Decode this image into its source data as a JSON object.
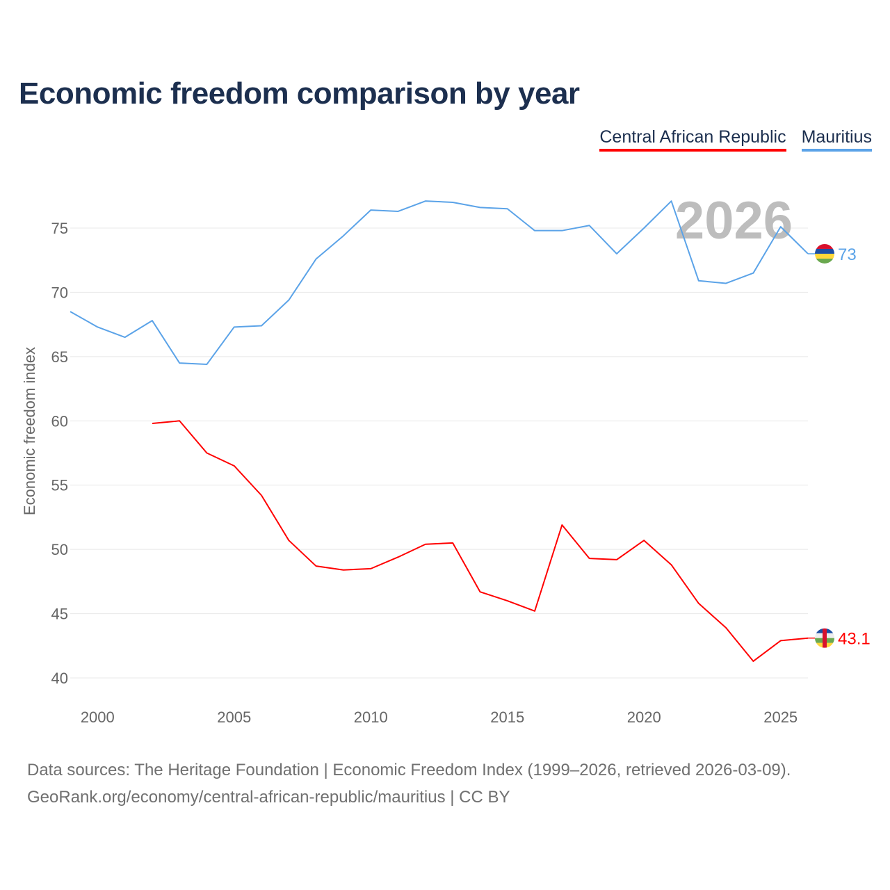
{
  "title": "Economic freedom comparison by year",
  "source_line1": "Data sources: The Heritage Foundation | Economic Freedom Index (1999–2026, retrieved 2026-03-09).",
  "source_line2": "GeoRank.org/economy/central-african-republic/mauritius | CC BY",
  "chart_data": {
    "type": "line",
    "title": "Economic freedom comparison by year",
    "xlabel": "",
    "ylabel": "Economic freedom index",
    "xlim": [
      1999,
      2026
    ],
    "ylim": [
      40,
      77.5
    ],
    "xticks": [
      2000,
      2005,
      2010,
      2015,
      2020,
      2025
    ],
    "yticks": [
      40,
      45,
      50,
      55,
      60,
      65,
      70,
      75
    ],
    "grid": true,
    "legend_position": "top-right",
    "year_watermark": "2026",
    "series": [
      {
        "name": "Central African Republic",
        "color": "#ff0000",
        "end_label": "43.1",
        "icon": "flag-central-african-republic-icon",
        "x": [
          2002,
          2003,
          2004,
          2005,
          2006,
          2007,
          2008,
          2009,
          2010,
          2011,
          2012,
          2013,
          2014,
          2015,
          2016,
          2017,
          2018,
          2019,
          2020,
          2021,
          2022,
          2023,
          2024,
          2025,
          2026
        ],
        "values": [
          59.8,
          60.0,
          57.5,
          56.5,
          54.2,
          50.7,
          48.7,
          48.4,
          48.5,
          49.4,
          50.4,
          50.5,
          46.7,
          46.0,
          45.2,
          51.9,
          49.3,
          49.2,
          50.7,
          48.8,
          45.8,
          43.9,
          41.3,
          42.9,
          43.1
        ]
      },
      {
        "name": "Mauritius",
        "color": "#5ba3e8",
        "end_label": "73",
        "icon": "flag-mauritius-icon",
        "x": [
          1999,
          2000,
          2001,
          2002,
          2003,
          2004,
          2005,
          2006,
          2007,
          2008,
          2009,
          2010,
          2011,
          2012,
          2013,
          2014,
          2015,
          2016,
          2017,
          2018,
          2019,
          2020,
          2021,
          2022,
          2023,
          2024,
          2025,
          2026
        ],
        "values": [
          68.5,
          67.3,
          66.5,
          67.8,
          64.5,
          64.4,
          67.3,
          67.4,
          69.4,
          72.6,
          74.4,
          76.4,
          76.3,
          77.1,
          77.0,
          76.6,
          76.5,
          74.8,
          74.8,
          75.2,
          73.0,
          75.0,
          77.1,
          70.9,
          70.7,
          71.5,
          75.1,
          73.0
        ]
      }
    ]
  }
}
